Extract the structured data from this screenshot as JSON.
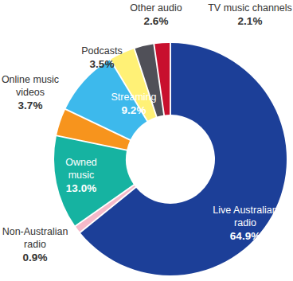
{
  "chart_data": {
    "type": "pie",
    "categories": [
      "Live Australian radio",
      "Non-Australian radio",
      "Owned music",
      "Online music videos",
      "Streaming",
      "Podcasts",
      "Other audio",
      "TV music channels"
    ],
    "values": [
      64.9,
      0.9,
      13.0,
      3.7,
      9.2,
      3.5,
      2.6,
      2.1
    ],
    "value_labels": [
      "64.9%",
      "0.9%",
      "13.0%",
      "3.7%",
      "9.2%",
      "3.5%",
      "2.6%",
      "2.1%"
    ],
    "colors": [
      "#1c3f98",
      "#f5b9c9",
      "#16b3a1",
      "#f7941d",
      "#3db9ec",
      "#fff176",
      "#505058",
      "#c8102e"
    ],
    "data_labels": true
  }
}
